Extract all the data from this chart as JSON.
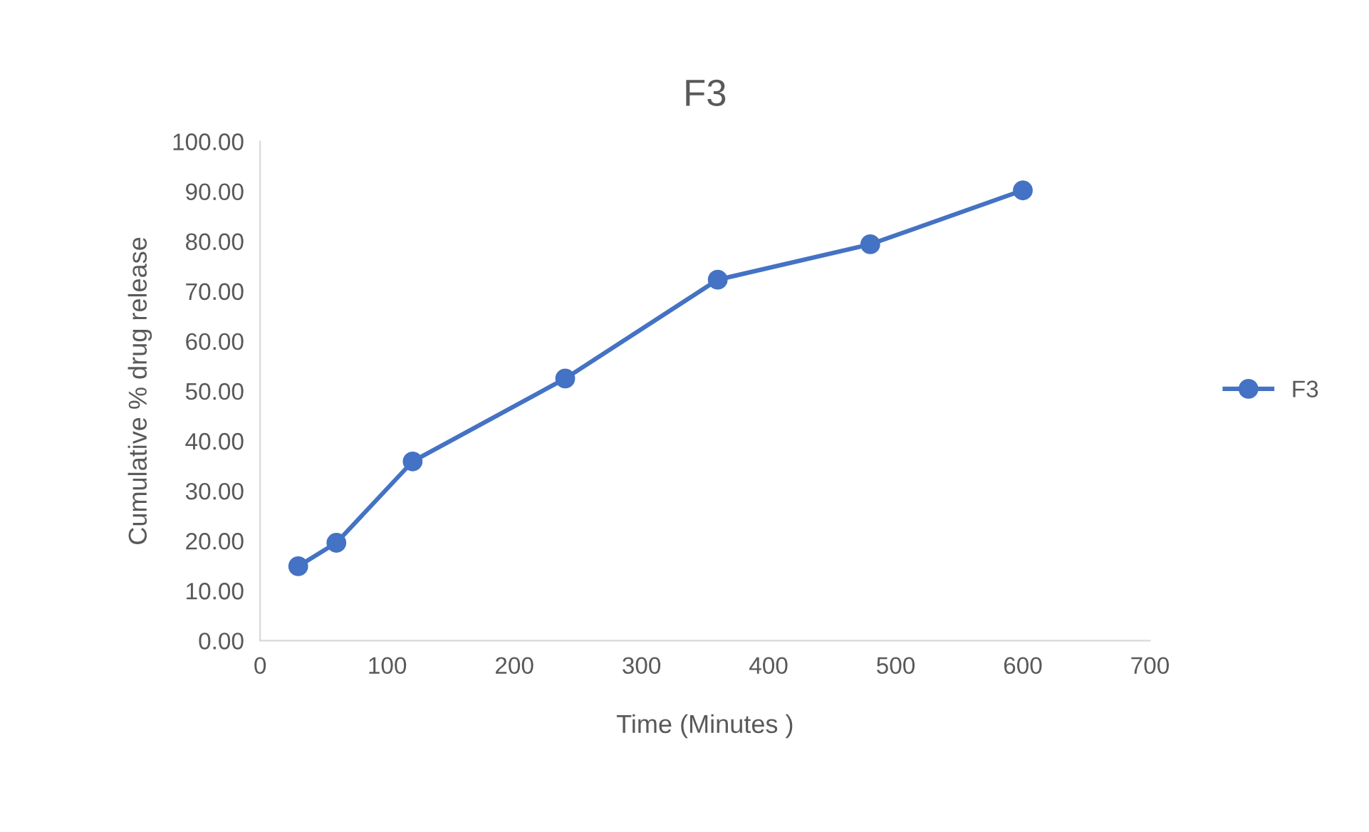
{
  "chart_data": {
    "type": "line",
    "title": "F3",
    "xlabel": "Time (Minutes )",
    "ylabel": "Cumulative % drug release",
    "x": [
      30,
      60,
      120,
      240,
      360,
      480,
      600
    ],
    "series": [
      {
        "name": "F3",
        "color": "#4472c4",
        "values": [
          14.9,
          19.6,
          35.9,
          52.5,
          72.3,
          79.4,
          90.2
        ]
      }
    ],
    "xlim": [
      0,
      700
    ],
    "xticks": [
      0,
      100,
      200,
      300,
      400,
      500,
      600,
      700
    ],
    "ylim": [
      0,
      100
    ],
    "yticks": [
      {
        "value": 0,
        "label": "0.00"
      },
      {
        "value": 10,
        "label": "10.00"
      },
      {
        "value": 20,
        "label": "20.00"
      },
      {
        "value": 30,
        "label": "30.00"
      },
      {
        "value": 40,
        "label": "40.00"
      },
      {
        "value": 50,
        "label": "50.00"
      },
      {
        "value": 60,
        "label": "60.00"
      },
      {
        "value": 70,
        "label": "70.00"
      },
      {
        "value": 80,
        "label": "80.00"
      },
      {
        "value": 90,
        "label": "90.00"
      },
      {
        "value": 100,
        "label": "100.00"
      }
    ],
    "grid": false,
    "legend": "right",
    "marker": "circle",
    "line_style": "solid"
  }
}
